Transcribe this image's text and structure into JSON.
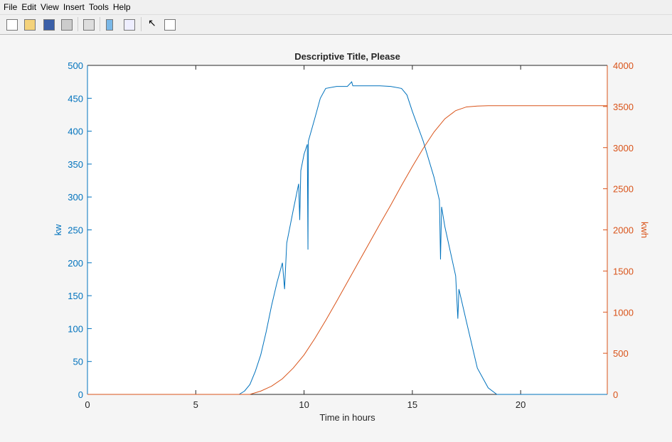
{
  "menu": [
    "File",
    "Edit",
    "View",
    "Insert",
    "Tools",
    "Help"
  ],
  "chart_data": {
    "type": "line",
    "title": "Descriptive Title, Please",
    "xlabel": "Time in hours",
    "ylabel": "kw",
    "y2label": "kwh",
    "xlim": [
      0,
      24
    ],
    "xticks": [
      0,
      5,
      10,
      15,
      20
    ],
    "ylim": [
      0,
      500
    ],
    "yticks": [
      0,
      50,
      100,
      150,
      200,
      250,
      300,
      350,
      400,
      450,
      500
    ],
    "y2lim": [
      0,
      4000
    ],
    "y2ticks": [
      0,
      500,
      1000,
      1500,
      2000,
      2500,
      3000,
      3500,
      4000
    ],
    "series": [
      {
        "name": "kw",
        "color": "#0072bd",
        "x": [
          0,
          7.0,
          7.25,
          7.5,
          7.75,
          8.0,
          8.25,
          8.5,
          8.75,
          9.0,
          9.1,
          9.2,
          9.5,
          9.75,
          9.8,
          9.85,
          10.0,
          10.15,
          10.18,
          10.2,
          10.5,
          10.75,
          11.0,
          11.5,
          12.0,
          12.2,
          12.25,
          13.0,
          13.5,
          14.0,
          14.5,
          14.75,
          15.0,
          15.5,
          16.0,
          16.25,
          16.3,
          16.35,
          16.5,
          17.0,
          17.1,
          17.15,
          17.5,
          18.0,
          18.5,
          18.9,
          24
        ],
        "values": [
          0,
          0,
          5,
          15,
          35,
          60,
          95,
          135,
          170,
          200,
          160,
          230,
          280,
          320,
          265,
          340,
          365,
          380,
          220,
          385,
          420,
          450,
          465,
          468,
          468,
          475,
          469,
          469,
          469,
          468,
          465,
          455,
          430,
          385,
          330,
          295,
          205,
          285,
          255,
          180,
          115,
          160,
          110,
          40,
          10,
          0,
          0
        ]
      },
      {
        "name": "kwh",
        "color": "#d95319",
        "axis": "y2",
        "x": [
          0,
          7.5,
          8.0,
          8.5,
          9.0,
          9.5,
          10.0,
          10.5,
          11.0,
          11.5,
          12.0,
          12.5,
          13.0,
          13.5,
          14.0,
          14.5,
          15.0,
          15.5,
          16.0,
          16.5,
          17.0,
          17.5,
          18.0,
          18.5,
          24
        ],
        "values": [
          0,
          0,
          40,
          100,
          190,
          320,
          480,
          680,
          900,
          1130,
          1365,
          1600,
          1835,
          2070,
          2300,
          2540,
          2770,
          2990,
          3190,
          3350,
          3450,
          3495,
          3505,
          3510,
          3510
        ]
      }
    ]
  }
}
